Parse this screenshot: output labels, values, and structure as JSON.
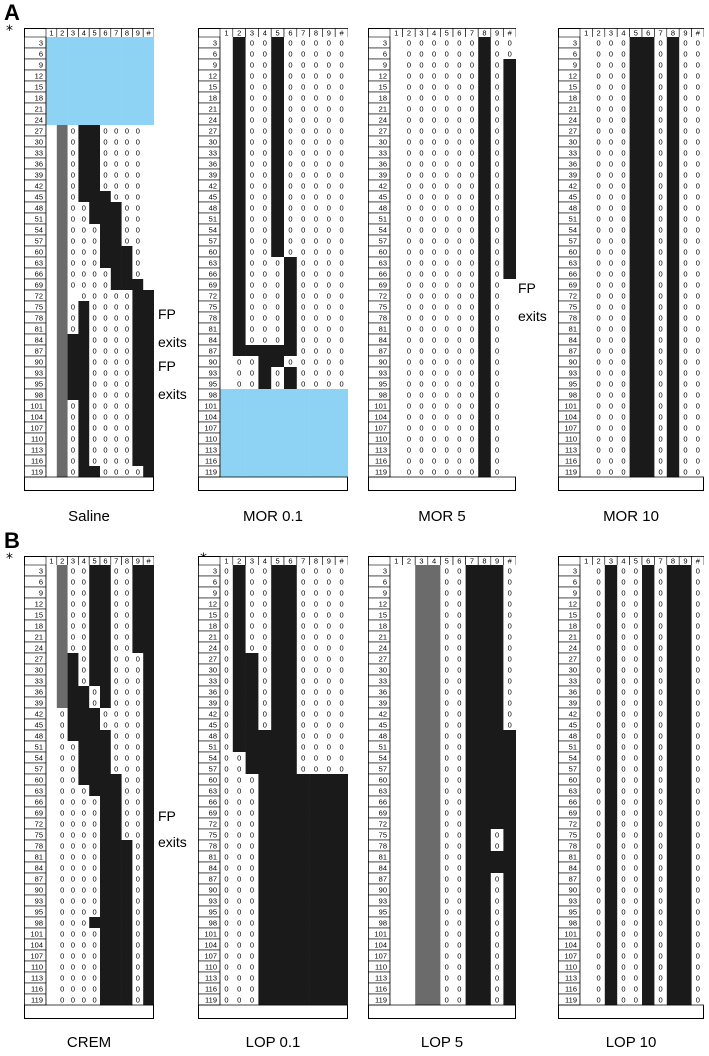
{
  "sections": [
    {
      "letter": "A",
      "star": "*"
    },
    {
      "letter": "B",
      "star": "*"
    }
  ],
  "row_labels": [
    3,
    6,
    9,
    12,
    15,
    18,
    21,
    24,
    27,
    30,
    33,
    36,
    39,
    42,
    45,
    48,
    51,
    54,
    57,
    60,
    63,
    66,
    69,
    72,
    75,
    78,
    81,
    84,
    87,
    90,
    93,
    95,
    98,
    101,
    104,
    107,
    110,
    113,
    116,
    119
  ],
  "column_labels": [
    "1",
    "2",
    "3",
    "4",
    "5",
    "6",
    "7",
    "8",
    "9",
    "#"
  ],
  "colors": {
    "black": "#1a1a1a",
    "gray": "#6b6b6b",
    "blue": "#8fd3f4",
    "white": "#ffffff",
    "zero_text": "#000000"
  },
  "legend": {
    "B": "black",
    "G": "gray",
    "L": "blue",
    "0": "white cell with 0",
    "W": "white cell"
  },
  "panels": [
    {
      "label": "Saline",
      "section": 0,
      "annotations": [
        "FP",
        "exits",
        "FP",
        "exits"
      ],
      "rows": [
        "LLLLLLLLLL",
        "LLLLLLLLLL",
        "LLLLLLLLLL",
        "LLLLLLLLLL",
        "LLLLLLLLLL",
        "LLLLLLLLLL",
        "LLLLLLLLLL",
        "LLLLLLLLLL",
        "WG0BB0000W",
        "WG0BB0000W",
        "WG0BB0000W",
        "WG0BB0000W",
        "WG0BB0000W",
        "WG0BB0000W",
        "WG0BBB000W",
        "WG00BBB00W",
        "WG00BBB00W",
        "WG000BB00W",
        "WG000BB00W",
        "WG000BBB0W",
        "WG000BBB0W",
        "WG0000BB0W",
        "WG0000BBBW",
        "WGW00000BB",
        "WG0B0000BB",
        "WG0B0000BB",
        "WG0B0000BB",
        "WGBB0000BB",
        "WGBB0000BB",
        "WGBB0000BB",
        "WGBB0000BB",
        "WGBB0000BB",
        "WGBB0000BB",
        "WG0B0000BB",
        "WG0B0000BB",
        "WG0B0000BB",
        "WG0B0000BB",
        "WG0B0000BB",
        "WG0B0000BB",
        "WG0BB0000B"
      ]
    },
    {
      "label": "MOR 0.1",
      "section": 0,
      "annotations": [],
      "rows": [
        "WB00B00000",
        "WB00B00000",
        "WB00B00000",
        "WB00B00000",
        "WB00B00000",
        "WB00B00000",
        "WB00B00000",
        "WB00B00000",
        "WB00B00000",
        "WB00B00000",
        "WB00B00000",
        "WB00B00000",
        "WB00B00000",
        "WB00B00000",
        "WB00B00000",
        "WB00B00000",
        "WB00B00000",
        "WB00B00000",
        "WB00B00000",
        "WB00B00000",
        "WB000B0000",
        "WB000B0000",
        "WB000B0000",
        "WB000B0000",
        "WB000B0000",
        "WB000B0000",
        "WB000B0000",
        "WB000B0000",
        "WBBBBB0000",
        "W00BB00000",
        "W00B0B0000",
        "W00B0B0000",
        "LLLLLLLLLL",
        "LLLLLLLLLL",
        "LLLLLLLLLL",
        "LLLLLLLLLL",
        "LLLLLLLLLL",
        "LLLLLLLLLL",
        "LLLLLLLLLL",
        "LLLLLLLLLL"
      ]
    },
    {
      "label": "MOR 5",
      "section": 0,
      "annotations": [
        "FP",
        "exits"
      ],
      "rows": [
        "W000000B00",
        "W000000B00",
        "W000000B0B",
        "W000000B0B",
        "W000000B0B",
        "W000000B0B",
        "W000000B0B",
        "W000000B0B",
        "W000000B0B",
        "W000000B0B",
        "W000000B0B",
        "W000000B0B",
        "W000000B0B",
        "W000000B0B",
        "W000000B0B",
        "W000000B0B",
        "W000000B0B",
        "W000000B0B",
        "W000000B0B",
        "W000000B0B",
        "W000000B0B",
        "W000000B0B",
        "W000000B0W",
        "W000000B0W",
        "W000000B0W",
        "W000000B0W",
        "W000000B0W",
        "W000000B0W",
        "W000000B0W",
        "W000000B0W",
        "W000000B0W",
        "W000000B0W",
        "W000000B0W",
        "W000000B0W",
        "W000000B0W",
        "W000000B0W",
        "W000000B0W",
        "W000000B0W",
        "W000000B0W",
        "W000000B0W"
      ]
    },
    {
      "label": "MOR 10",
      "section": 0,
      "annotations": [],
      "rows": [
        "W000BB0B00",
        "W000BB0B00",
        "W000BB0B00",
        "W000BB0B00",
        "W000BB0B00",
        "W000BB0B00",
        "W000BB0B00",
        "W000BB0B00",
        "W000BB0B00",
        "W000BB0B00",
        "W000BB0B00",
        "W000BB0B00",
        "W000BB0B00",
        "W000BB0B00",
        "W000BB0B00",
        "W000BB0B00",
        "W000BB0B00",
        "W000BB0B00",
        "W000BB0B00",
        "W000BB0B00",
        "W000BB0B00",
        "W000BB0B00",
        "W000BB0B00",
        "W000BB0B00",
        "W000BB0B00",
        "W000BB0B00",
        "W000BB0B00",
        "W000BB0B00",
        "W000BB0B00",
        "W000BB0B00",
        "W000BB0B00",
        "W000BB0B00",
        "W000BB0B00",
        "W000BB0B00",
        "W000BB0B00",
        "W000BB0B00",
        "W000BB0B00",
        "W000BB0B00",
        "W000BB0B00",
        "W000BB0B00"
      ]
    },
    {
      "label": "CREM",
      "section": 1,
      "annotations": [
        "FP",
        "exits"
      ],
      "rows": [
        "WG00BB00BB",
        "WG00BB00BB",
        "WG00BB00BB",
        "WG00BB00BB",
        "WG00BB00BB",
        "WG00BB00BB",
        "WG00BB00BB",
        "WG00BB00BB",
        "WGB0BB000B",
        "WGB0BB000B",
        "WGB0BB000B",
        "WGBB0B000B",
        "WGBB0B000B",
        "W0BBB0000B",
        "W0BBB0000B",
        "W0BBBB000B",
        "W00BBB000B",
        "W00BBB000B",
        "W00BBB000B",
        "W00BBBB00B",
        "W000BBB00B",
        "W0000BB00B",
        "W0000BB00B",
        "W0000BB00B",
        "W0000BB00B",
        "W0000BBB0B",
        "W0000BBB0B",
        "W0000BBB0B",
        "W0000BBB0B",
        "W0000BBB0B",
        "W0000BBB0B",
        "W0000BBB0B",
        "W000BBBB0B",
        "W0000BBB0B",
        "W0000BBB0B",
        "W0000BBB0B",
        "W0000BBB0B",
        "W0000BBB0B",
        "W0000BBB0B",
        "W0000BBB0B"
      ]
    },
    {
      "label": "LOP 0.1",
      "section": 1,
      "annotations": [],
      "rows": [
        "0B00BB0000",
        "0B00BB0000",
        "0B00BB0000",
        "0B00BB0000",
        "0B00BB0000",
        "0B00BB0000",
        "0B00BB0000",
        "0B00BB0000",
        "0BB0BB0000",
        "0BB0BB0000",
        "0BB0BB0000",
        "0BB0BB0000",
        "0BB0BB0000",
        "0BB0BB0000",
        "0BB0BB0000",
        "0BBBBB0000",
        "0BBBBB0000",
        "00BBBB0000",
        "00BBBB0000",
        "000BBBBBBB",
        "000BBBBBBB",
        "000BBBBBBB",
        "000BBBBBBB",
        "000BBBBBBB",
        "000BBBBBBB",
        "000BBBBBBB",
        "000BBBBBBB",
        "000BBBBBBB",
        "000BBBBBBB",
        "000BBBBBBB",
        "000BBBBBBB",
        "000BBBBBBB",
        "000BBBBBBB",
        "000BBBBBBB",
        "000BBBBBBB",
        "000BBBBBBB",
        "000BBBBBBB",
        "000BBBBBBB",
        "000BBBBBBB",
        "000BBBBBBB"
      ]
    },
    {
      "label": "LOP 5",
      "section": 1,
      "annotations": [],
      "rows": [
        "WWGG00BBB0",
        "WWGG00BBB0",
        "WWGG00BBB0",
        "WWGG00BBB0",
        "WWGG00BBB0",
        "WWGG00BBB0",
        "WWGG00BBB0",
        "WWGG00BBB0",
        "WWGG00BBB0",
        "WWGG00BBB0",
        "WWGG00BBB0",
        "WWGG00BBB0",
        "WWGG00BBB0",
        "WWGG00BBB0",
        "WWGG00BBB0",
        "WWGG00BBBB",
        "WWGG00BBBB",
        "WWGG00BBBB",
        "WWGG00BBBB",
        "WWGG00BBBB",
        "WWGG00BBBB",
        "WWGG00BBBB",
        "WWGG00BBBB",
        "WWGG00BBBB",
        "WWGG00BB0B",
        "WWGG00BB0B",
        "WWGG00BBBB",
        "WWGG00BBBB",
        "WWGG00BB0B",
        "WWGG00BB0B",
        "WWGG00BB0B",
        "WWGG00BB0B",
        "WWGG00BB0B",
        "WWGG00BB0B",
        "WWGG00BB0B",
        "WWGG00BB0B",
        "WWGG00BB0B",
        "WWGG00BB0B",
        "WWGG00BB0B",
        "WWGG00BB0B"
      ]
    },
    {
      "label": "LOP 10",
      "section": 1,
      "annotations": [],
      "rows": [
        "W0B00B0BB0",
        "W0B00B0BB0",
        "W0B00B0BB0",
        "W0B00B0BB0",
        "W0B00B0BB0",
        "W0B00B0BB0",
        "W0B00B0BB0",
        "W0B00B0BB0",
        "W0B00B0BB0",
        "W0B00B0BB0",
        "W0B00B0BB0",
        "W0B00B0BB0",
        "W0B00B0BB0",
        "W0B00B0BB0",
        "W0B00B0BB0",
        "W0B00B0BB0",
        "W0B00B0BB0",
        "W0B00B0BB0",
        "W0B00B0BB0",
        "W0B00B0BB0",
        "W0B00B0BB0",
        "W0B00B0BB0",
        "W0B00B0BB0",
        "W0B00B0BB0",
        "W0B00B0BB0",
        "W0B00B0BB0",
        "W0B00B0BB0",
        "W0B00B0BB0",
        "W0B00B0BB0",
        "W0B00B0BB0",
        "W0B00B0BB0",
        "W0B00B0BB0",
        "W0B00B0BB0",
        "W0B00B0BB0",
        "W0B00B0BB0",
        "W0B00B0BB0",
        "W0B00B0BB0",
        "W0B00B0BB0",
        "W0B00B0BB0",
        "W0B00B0BB0"
      ]
    }
  ]
}
